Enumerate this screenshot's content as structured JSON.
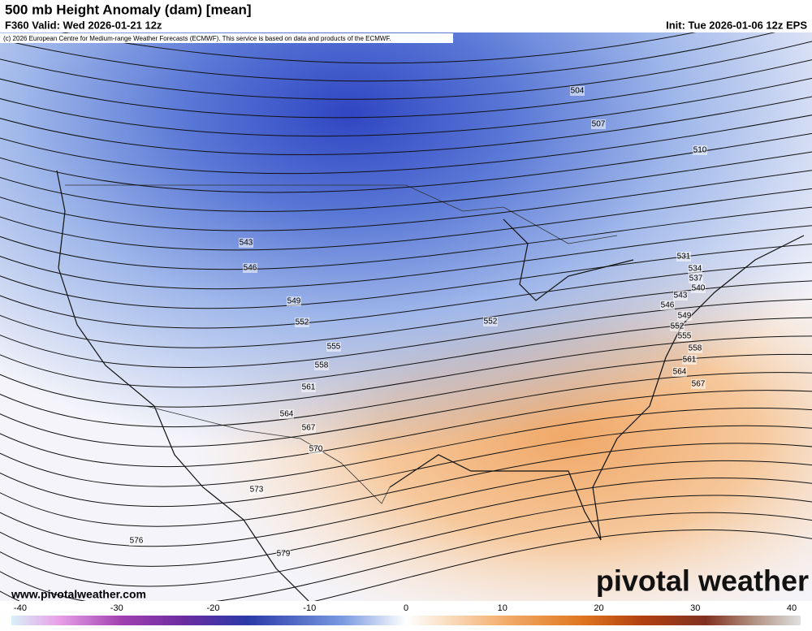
{
  "header": {
    "title": "500 mb Height Anomaly (dam) [mean]",
    "valid": "F360 Valid: Wed 2026-01-21 12z",
    "init": "Init: Tue 2026-01-06 12z EPS",
    "credit": "(c) 2026 European Centre for Medium-range Weather Forecasts (ECMWF). This service is based on data and products of the ECMWF."
  },
  "map": {
    "contour_labels": [
      504,
      507,
      510,
      543,
      546,
      549,
      552,
      555,
      558,
      561,
      564,
      567,
      570,
      573,
      576,
      579,
      552,
      531,
      534,
      537,
      540,
      543,
      546,
      549,
      552,
      555,
      558,
      561,
      564,
      567
    ]
  },
  "footer": {
    "website": "www.pivotalweather.com",
    "logo": "pivotal weather"
  },
  "colorbar": {
    "ticks": [
      -40,
      -30,
      -20,
      -10,
      0,
      10,
      20,
      30,
      40
    ]
  }
}
